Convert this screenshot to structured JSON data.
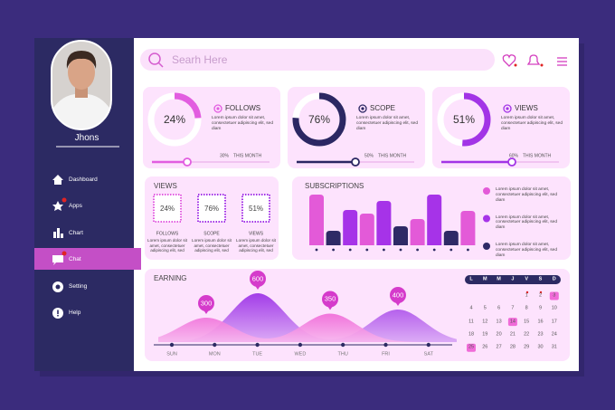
{
  "sidebar": {
    "name": "Jhons",
    "menu": [
      "Dashboard",
      "Apps",
      "Chart",
      "Chat",
      "Setting",
      "Help"
    ]
  },
  "header": {
    "search_placeholder": "Searh Here"
  },
  "stat_cards": [
    {
      "value": 24,
      "value_label": "24%",
      "label": "FOLLOWS",
      "text": "Lorem ipsum dolor sit amet, consectetuer adipiscing elit, sed diam",
      "month_value": 30,
      "month_value_label": "30%",
      "month_label": "THIS MONTH"
    },
    {
      "value": 76,
      "value_label": "76%",
      "label": "SCOPE",
      "text": "Lorem ipsum dolor sit amet, consectetuer adipiscing elit, sed diam",
      "month_value": 50,
      "month_value_label": "50%",
      "month_label": "THIS MONTH"
    },
    {
      "value": 51,
      "value_label": "51%",
      "label": "VIEWS",
      "text": "Lorem ipsum dolor sit amet, consectetuer adipiscing elit, sed diam",
      "month_value": 60,
      "month_value_label": "60%",
      "month_label": "THIS MONTH"
    }
  ],
  "views_card": {
    "title": "VIEWS",
    "items": [
      {
        "value": 24,
        "value_label": "24%",
        "label": "FOLLOWS",
        "text": "Lorem ipsum dolor sit amet, consectetuer adipiscing elit, sed"
      },
      {
        "value": 76,
        "value_label": "76%",
        "label": "SCOPE",
        "text": "Lorem ipsum dolor sit amet, consectetuer adipiscing elit, sed"
      },
      {
        "value": 51,
        "value_label": "51%",
        "label": "VIEWS",
        "text": "Lorem ipsum dolor sit amet, consectetuer adipiscing elit, sed"
      }
    ]
  },
  "subscriptions": {
    "type": "bar",
    "title": "SUBSCRIPTIONS",
    "values": [
      56,
      16,
      39,
      35,
      49,
      21,
      29,
      56,
      16,
      38
    ],
    "colors": [
      "#e35ad8",
      "#2e2a66",
      "#a633e8",
      "#e35ad8",
      "#a633e8",
      "#2e2a66",
      "#e35ad8",
      "#a633e8",
      "#2e2a66",
      "#e35ad8"
    ],
    "legend": [
      {
        "color": "#e35ad8",
        "text": "Lorem ipsum dolor sit amet, consectetuer adipiscing elit, sed diam"
      },
      {
        "color": "#a633e8",
        "text": "Lorem ipsum dolor sit amet, consectetuer adipiscing elit, sed diam"
      },
      {
        "color": "#2e2a66",
        "text": "Lorem ipsum dolor sit amet, consectetuer adipiscing elit, sed diam"
      }
    ]
  },
  "earning": {
    "type": "area",
    "title": "EARNING",
    "days": [
      "SUN",
      "MON",
      "TUE",
      "WED",
      "THU",
      "FRI",
      "SAT"
    ],
    "peaks": [
      300,
      600,
      350,
      400
    ]
  },
  "calendar": {
    "weekdays": [
      "L",
      "M",
      "M",
      "J",
      "V",
      "S",
      "D"
    ],
    "days": [
      1,
      2,
      3,
      4,
      5,
      6,
      7,
      8,
      9,
      10,
      11,
      12,
      13,
      14,
      15,
      16,
      17,
      18,
      19,
      20,
      21,
      22,
      23,
      24,
      25,
      26,
      27,
      28,
      29,
      30,
      31
    ]
  }
}
